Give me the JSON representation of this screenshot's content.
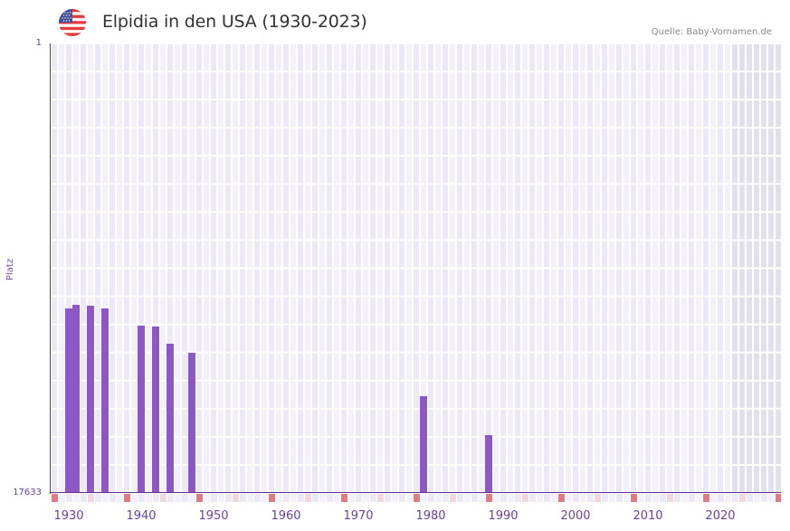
{
  "header": {
    "title": "Elpidia in den USA (1930-2023)",
    "source": "Quelle: Baby-Vornamen.de",
    "flag_icon": "us-flag-icon"
  },
  "axes": {
    "y_top_label": "1",
    "y_bottom_label": "17633",
    "y_axis_title": "Platz",
    "x_tick_labels": [
      "1930",
      "1940",
      "1950",
      "1960",
      "1970",
      "1980",
      "1990",
      "2000",
      "2010",
      "2020"
    ]
  },
  "colors": {
    "bar": "#8e57c6",
    "axis": "#6a2c91",
    "grid_light": "#f3f0fc",
    "grid_dark": "#ece8f8",
    "future_shade": "#e3e0ee",
    "marker_decade": "#e57882",
    "marker_half": "#f5d6de"
  },
  "chart_data": {
    "type": "bar",
    "title": "Elpidia in den USA (1930-2023)",
    "xlabel": "",
    "ylabel": "Platz",
    "ylim": [
      17633,
      1
    ],
    "y_inverted": true,
    "x_range": [
      1928,
      2028
    ],
    "grid": true,
    "shaded_region": [
      2022,
      2028
    ],
    "categories": [
      "1930",
      "1931",
      "1933",
      "1935",
      "1940",
      "1942",
      "1944",
      "1947",
      "1979",
      "1988"
    ],
    "values": [
      10395,
      10253,
      10288,
      10395,
      11069,
      11104,
      11778,
      12133,
      13836,
      15362
    ]
  }
}
